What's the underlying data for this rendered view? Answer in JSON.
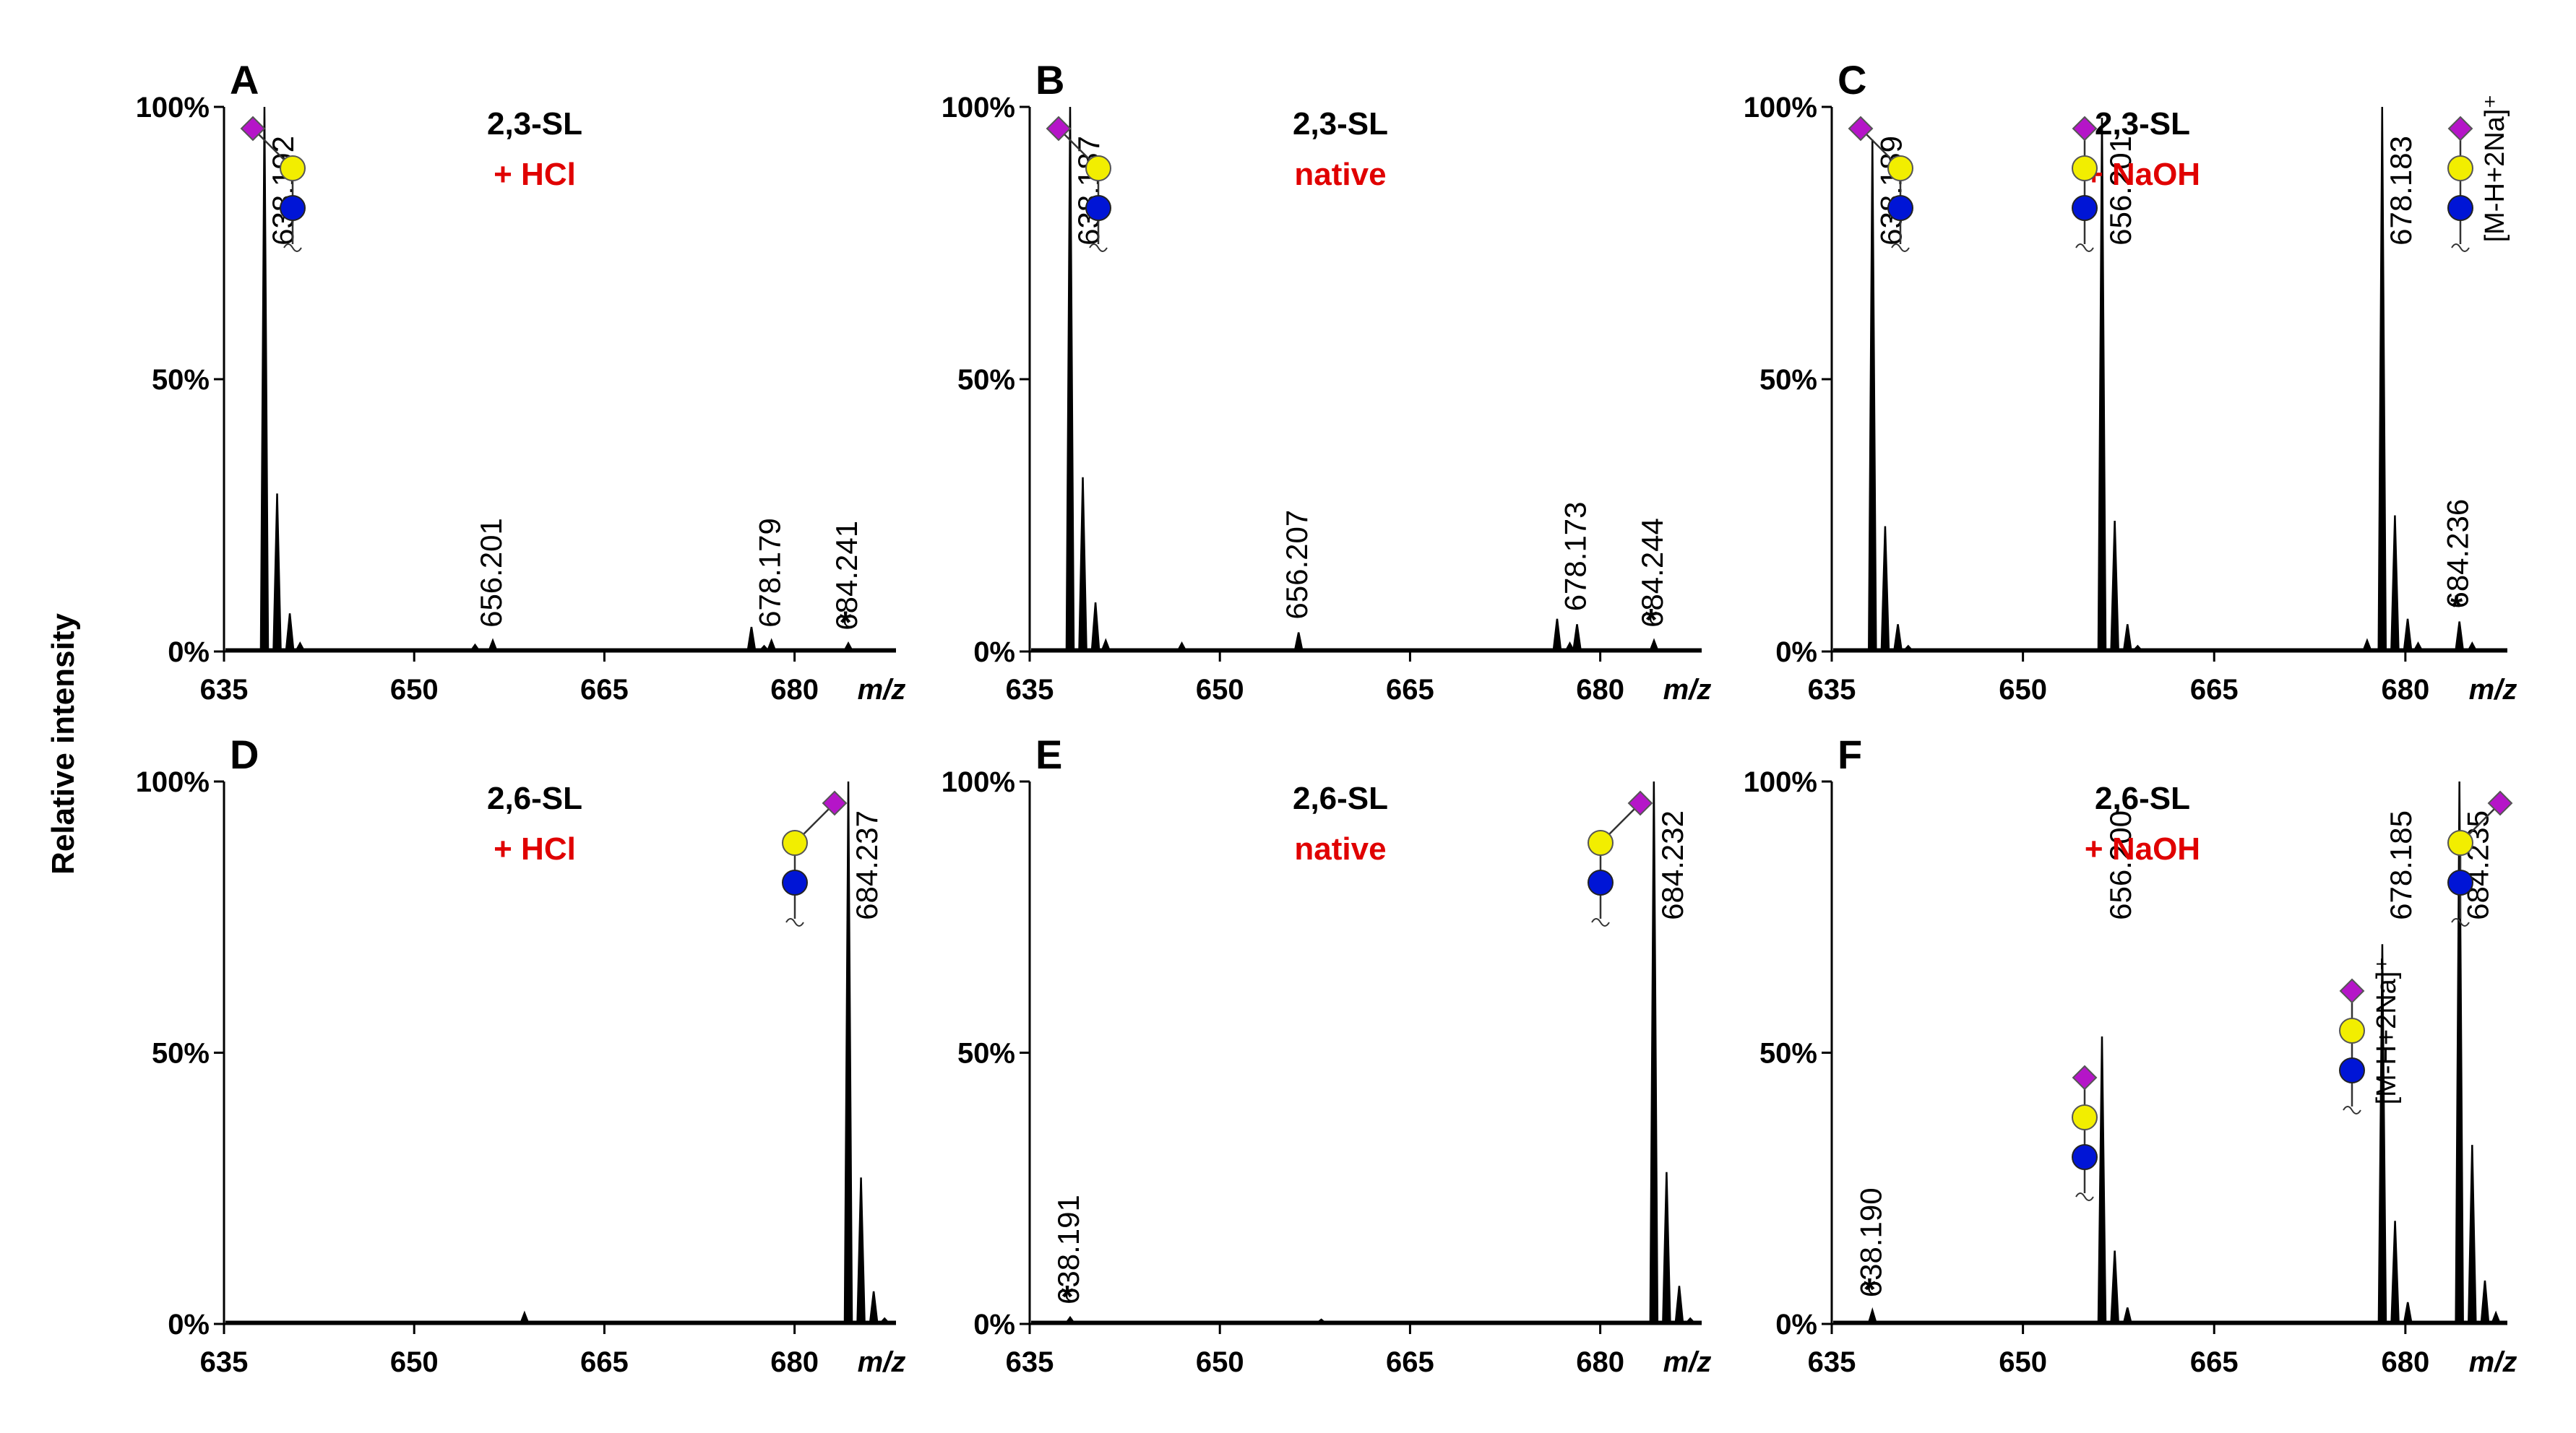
{
  "figure": {
    "y_axis_title": "Relative intensity",
    "x_axis_label": "m/z",
    "x_ticks": [
      "635",
      "650",
      "665",
      "680"
    ],
    "y_ticks": [
      "0%",
      "50%",
      "100%"
    ],
    "colors": {
      "line": "#000000",
      "treatment": "#e00000",
      "sialic": "#b515c8",
      "gal": "#f2ee00",
      "glc": "#0015d6"
    }
  },
  "chart_data": [
    {
      "type": "line",
      "panel": "A",
      "title": "2,3-SL",
      "treatment": "+ HCl",
      "xlabel": "m/z",
      "ylabel": "Relative intensity",
      "xlim": [
        635,
        688
      ],
      "ylim": [
        0,
        100
      ],
      "peaks": [
        {
          "mz": 638.19,
          "intensity": 100,
          "label": "638.192"
        },
        {
          "mz": 639.19,
          "intensity": 29
        },
        {
          "mz": 640.19,
          "intensity": 7
        },
        {
          "mz": 641.0,
          "intensity": 1.5
        },
        {
          "mz": 654.8,
          "intensity": 1.2
        },
        {
          "mz": 656.2,
          "intensity": 2,
          "label": "656.201"
        },
        {
          "mz": 676.6,
          "intensity": 4.5
        },
        {
          "mz": 677.6,
          "intensity": 1
        },
        {
          "mz": 678.18,
          "intensity": 2,
          "label": "678.179"
        },
        {
          "mz": 684.24,
          "intensity": 1.5,
          "label": "684.241",
          "asterisk": true
        }
      ],
      "glycans": [
        {
          "type": "2,3"
        }
      ]
    },
    {
      "type": "line",
      "panel": "B",
      "title": "2,3-SL",
      "treatment": "native",
      "xlabel": "m/z",
      "ylabel": "Relative intensity",
      "xlim": [
        635,
        688
      ],
      "ylim": [
        0,
        100
      ],
      "peaks": [
        {
          "mz": 638.19,
          "intensity": 100,
          "label": "638.187"
        },
        {
          "mz": 639.19,
          "intensity": 32
        },
        {
          "mz": 640.19,
          "intensity": 9
        },
        {
          "mz": 641.0,
          "intensity": 2
        },
        {
          "mz": 647.0,
          "intensity": 1.5
        },
        {
          "mz": 656.21,
          "intensity": 3.5,
          "label": "656.207"
        },
        {
          "mz": 676.6,
          "intensity": 6
        },
        {
          "mz": 677.6,
          "intensity": 1.5
        },
        {
          "mz": 678.17,
          "intensity": 5,
          "label": "678.173"
        },
        {
          "mz": 684.24,
          "intensity": 2,
          "label": "684.244",
          "asterisk": true
        }
      ],
      "glycans": [
        {
          "type": "2,3"
        }
      ]
    },
    {
      "type": "line",
      "panel": "C",
      "title": "2,3-SL",
      "treatment": "+ NaOH",
      "xlabel": "m/z",
      "ylabel": "Relative intensity",
      "xlim": [
        635,
        688
      ],
      "ylim": [
        0,
        100
      ],
      "peaks": [
        {
          "mz": 638.19,
          "intensity": 94,
          "label": "638.189"
        },
        {
          "mz": 639.19,
          "intensity": 23
        },
        {
          "mz": 640.19,
          "intensity": 5
        },
        {
          "mz": 641.0,
          "intensity": 1
        },
        {
          "mz": 656.2,
          "intensity": 98,
          "label": "656.201"
        },
        {
          "mz": 657.2,
          "intensity": 24
        },
        {
          "mz": 658.2,
          "intensity": 5
        },
        {
          "mz": 659.0,
          "intensity": 1
        },
        {
          "mz": 677.0,
          "intensity": 2
        },
        {
          "mz": 678.18,
          "intensity": 100,
          "label": "678.183"
        },
        {
          "mz": 679.18,
          "intensity": 25
        },
        {
          "mz": 680.18,
          "intensity": 6
        },
        {
          "mz": 681.0,
          "intensity": 1.5
        },
        {
          "mz": 684.24,
          "intensity": 5.5,
          "label": "684.236",
          "asterisk": true
        },
        {
          "mz": 685.24,
          "intensity": 1.5
        }
      ],
      "glycans": [
        {
          "type": "2,3"
        },
        {
          "type": "linear"
        },
        {
          "type": "linear",
          "annotation": "[M-H+2Na]⁺"
        }
      ]
    },
    {
      "type": "line",
      "panel": "D",
      "title": "2,6-SL",
      "treatment": "+ HCl",
      "xlabel": "m/z",
      "ylabel": "Relative intensity",
      "xlim": [
        635,
        688
      ],
      "ylim": [
        0,
        100
      ],
      "peaks": [
        {
          "mz": 658.7,
          "intensity": 2
        },
        {
          "mz": 684.24,
          "intensity": 100,
          "label": "684.237"
        },
        {
          "mz": 685.24,
          "intensity": 27
        },
        {
          "mz": 686.24,
          "intensity": 6
        },
        {
          "mz": 687.1,
          "intensity": 1
        }
      ],
      "glycans": [
        {
          "type": "2,6"
        }
      ]
    },
    {
      "type": "line",
      "panel": "E",
      "title": "2,6-SL",
      "treatment": "native",
      "xlabel": "m/z",
      "ylabel": "Relative intensity",
      "xlim": [
        635,
        688
      ],
      "ylim": [
        0,
        100
      ],
      "peaks": [
        {
          "mz": 638.19,
          "intensity": 1.2,
          "label": "638.191",
          "asterisk": true
        },
        {
          "mz": 658.0,
          "intensity": 0.8
        },
        {
          "mz": 684.23,
          "intensity": 100,
          "label": "684.232"
        },
        {
          "mz": 685.23,
          "intensity": 28
        },
        {
          "mz": 686.23,
          "intensity": 7
        },
        {
          "mz": 687.1,
          "intensity": 1
        }
      ],
      "glycans": [
        {
          "type": "2,6"
        }
      ]
    },
    {
      "type": "line",
      "panel": "F",
      "title": "2,6-SL",
      "treatment": "+ NaOH",
      "xlabel": "m/z",
      "ylabel": "Relative intensity",
      "xlim": [
        635,
        688
      ],
      "ylim": [
        0,
        100
      ],
      "peaks": [
        {
          "mz": 638.19,
          "intensity": 2.5,
          "label": "638.190",
          "asterisk": true
        },
        {
          "mz": 656.2,
          "intensity": 53,
          "label": "656.200"
        },
        {
          "mz": 657.2,
          "intensity": 13.5
        },
        {
          "mz": 658.2,
          "intensity": 3
        },
        {
          "mz": 678.19,
          "intensity": 70,
          "label": "678.185"
        },
        {
          "mz": 679.19,
          "intensity": 19
        },
        {
          "mz": 680.19,
          "intensity": 4
        },
        {
          "mz": 684.24,
          "intensity": 100,
          "label": "684.235"
        },
        {
          "mz": 685.24,
          "intensity": 33
        },
        {
          "mz": 686.24,
          "intensity": 8
        },
        {
          "mz": 687.1,
          "intensity": 2
        }
      ],
      "glycans": [
        {
          "type": "linear"
        },
        {
          "type": "linear",
          "annotation": "[M-H+2Na]⁺"
        },
        {
          "type": "2,6"
        }
      ]
    }
  ]
}
